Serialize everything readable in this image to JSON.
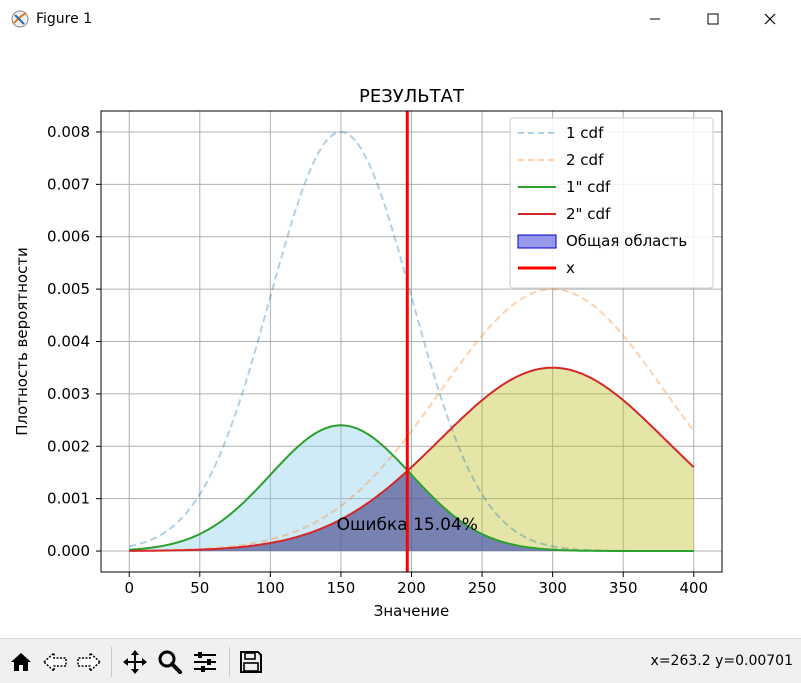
{
  "window": {
    "title": "Figure 1",
    "icons": [
      "figure-app-icon",
      "minimize-icon",
      "maximize-icon",
      "close-icon"
    ]
  },
  "toolbar": {
    "tools": [
      "home-icon",
      "back-icon",
      "forward-icon",
      "pan-icon",
      "zoom-icon",
      "configure-subplots-icon",
      "save-icon"
    ],
    "coords": "x=263.2 y=0.00701"
  },
  "colors": {
    "pdf1": "#1f77b4",
    "pdf2": "#ff7f0e",
    "curve1": "#2ca02c",
    "curve2": "#d62728",
    "fill1": "#87ceeb",
    "fill2": "#bcbd22",
    "common": "#0000cd",
    "vline": "#ff0000"
  },
  "chart_data": {
    "type": "line",
    "title": "РЕЗУЛЬТАТ",
    "xlabel": "Значение",
    "ylabel": "Плотность вероятности",
    "xlim": [
      -20,
      420
    ],
    "ylim": [
      -0.0004,
      0.0084
    ],
    "xticks": [
      0,
      50,
      100,
      150,
      200,
      250,
      300,
      350,
      400
    ],
    "xtick_labels": [
      "0",
      "50",
      "100",
      "150",
      "200",
      "250",
      "300",
      "350",
      "400"
    ],
    "yticks": [
      0,
      0.001,
      0.002,
      0.003,
      0.004,
      0.005,
      0.006,
      0.007,
      0.008
    ],
    "ytick_labels": [
      "0.000",
      "0.001",
      "0.002",
      "0.003",
      "0.004",
      "0.005",
      "0.006",
      "0.007",
      "0.008"
    ],
    "grid": true,
    "legend_position": "top-right",
    "x": [
      0,
      25,
      50,
      75,
      100,
      125,
      150,
      175,
      200,
      225,
      250,
      275,
      300,
      325,
      350,
      375,
      400
    ],
    "series": [
      {
        "name": "1 cdf",
        "style": "dashed",
        "values": [
          9e-05,
          0.0004,
          0.0011,
          0.0026,
          0.0048,
          0.007,
          0.008,
          0.007,
          0.0048,
          0.0026,
          0.0011,
          0.0004,
          9e-05,
          2e-05,
          0.0,
          0.0,
          0.0
        ]
      },
      {
        "name": "2 cdf",
        "style": "dashed",
        "values": [
          6e-05,
          0.00012,
          0.00024,
          0.0004,
          0.0007,
          0.0011,
          0.0016,
          0.0023,
          0.003,
          0.0037,
          0.0044,
          0.0048,
          0.005,
          0.0048,
          0.0044,
          0.0037,
          0.0023
        ]
      },
      {
        "name": "1\" cdf",
        "style": "solid",
        "values": [
          3e-05,
          0.0001,
          0.00033,
          0.00078,
          0.00144,
          0.0021,
          0.0024,
          0.0021,
          0.00144,
          0.00078,
          0.00033,
          0.0001,
          3e-05,
          1e-05,
          0.0,
          0.0,
          0.0
        ]
      },
      {
        "name": "2\" cdf",
        "style": "solid",
        "values": [
          1e-05,
          2e-05,
          5e-05,
          0.0001,
          0.00021,
          0.00037,
          0.0006,
          0.001,
          0.0016,
          0.0023,
          0.0029,
          0.0033,
          0.0035,
          0.0033,
          0.0029,
          0.0023,
          0.0016
        ]
      }
    ],
    "common_area_label": "Общая область",
    "vline": {
      "name": "x",
      "x": 197
    },
    "annotation": {
      "text": "Ошибка 15.04%",
      "x": 197,
      "y": 0.0004
    }
  }
}
